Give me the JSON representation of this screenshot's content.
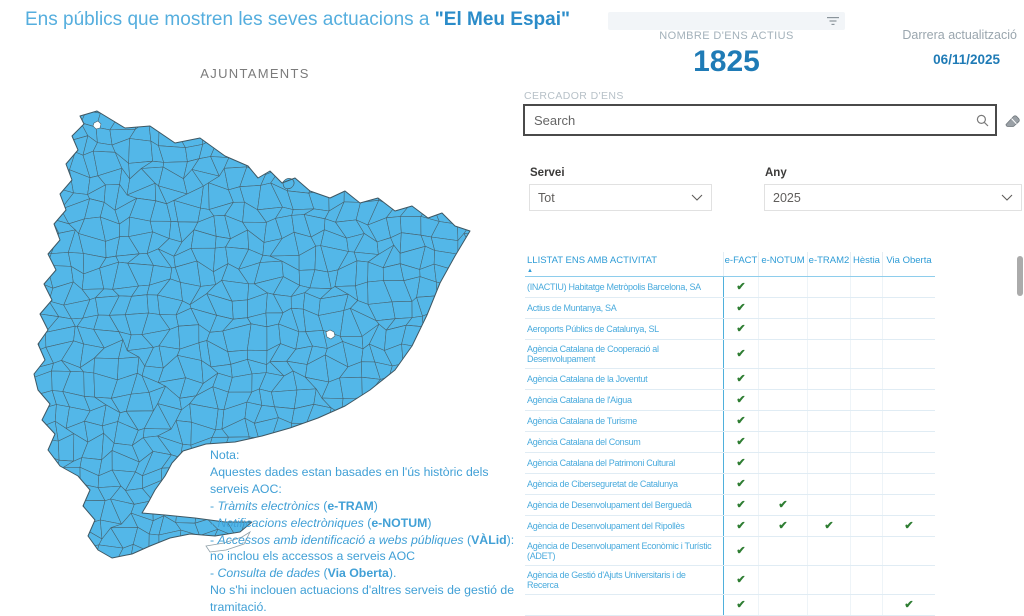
{
  "title": {
    "prefix": "Ens públics que mostren les seves actuacions a ",
    "highlight": "\"El Meu Espai\""
  },
  "map": {
    "title": "AJUNTAMENTS",
    "fill_color": "#53b7e8",
    "border_color": "#47626e"
  },
  "kpi": {
    "label": "NOMBRE D'ENS ACTIUS",
    "value": "1825"
  },
  "updated": {
    "label": "Darrera actualització",
    "value": "06/11/2025"
  },
  "search": {
    "section_label": "CERCADOR D'ENS",
    "placeholder": "Search"
  },
  "filters": {
    "servei_label": "Servei",
    "servei_value": "Tot",
    "any_label": "Any",
    "any_value": "2025"
  },
  "table": {
    "name_header": "LLISTAT ENS AMB ACTIVITAT",
    "sort_glyph": "▲",
    "check_glyph": "✔",
    "check_color": "#2e7d32",
    "service_headers": [
      "e-FACT",
      "e-NOTUM",
      "e-TRAM2",
      "Hèstia",
      "Via Oberta"
    ],
    "rows": [
      {
        "name": "(INACTIU) Habitatge Metròpolis Barcelona, SA",
        "checks": [
          1,
          0,
          0,
          0,
          0
        ]
      },
      {
        "name": "Actius de Muntanya, SA",
        "checks": [
          1,
          0,
          0,
          0,
          0
        ]
      },
      {
        "name": "Aeroports Públics de Catalunya, SL",
        "checks": [
          1,
          0,
          0,
          0,
          0
        ]
      },
      {
        "name": "Agència Catalana de Cooperació al\nDesenvolupament",
        "checks": [
          1,
          0,
          0,
          0,
          0
        ]
      },
      {
        "name": "Agència Catalana de la Joventut",
        "checks": [
          1,
          0,
          0,
          0,
          0
        ]
      },
      {
        "name": "Agència Catalana de l'Aigua",
        "checks": [
          1,
          0,
          0,
          0,
          0
        ]
      },
      {
        "name": "Agència Catalana de Turisme",
        "checks": [
          1,
          0,
          0,
          0,
          0
        ]
      },
      {
        "name": "Agència Catalana del Consum",
        "checks": [
          1,
          0,
          0,
          0,
          0
        ]
      },
      {
        "name": "Agència Catalana del Patrimoni Cultural",
        "checks": [
          1,
          0,
          0,
          0,
          0
        ]
      },
      {
        "name": "Agència de Ciberseguretat de Catalunya",
        "checks": [
          1,
          0,
          0,
          0,
          0
        ]
      },
      {
        "name": "Agència de Desenvolupament del Berguedà",
        "checks": [
          1,
          1,
          0,
          0,
          0
        ]
      },
      {
        "name": "Agència de Desenvolupament del Ripollès",
        "checks": [
          1,
          1,
          1,
          0,
          1
        ]
      },
      {
        "name": "Agència de Desenvolupament Econòmic i Turístic\n(ADET)",
        "checks": [
          1,
          0,
          0,
          0,
          0
        ]
      },
      {
        "name": "Agència de Gestió d'Ajuts Universitaris i de Recerca",
        "checks": [
          1,
          0,
          0,
          0,
          0
        ]
      },
      {
        "name": "",
        "checks": [
          1,
          0,
          0,
          0,
          1
        ]
      }
    ]
  },
  "note": {
    "lines": [
      [
        {
          "t": "Nota:"
        }
      ],
      [
        {
          "t": "Aquestes dades estan basades en l'ús  històric dels serveis AOC:"
        }
      ],
      [
        {
          "t": "- "
        },
        {
          "t": "Tràmits electrònics",
          "em": true
        },
        {
          "t": " ("
        },
        {
          "t": "e-TRAM",
          "b": true
        },
        {
          "t": ")"
        }
      ],
      [
        {
          "t": "- "
        },
        {
          "t": "Notificacions electròniques",
          "em": true
        },
        {
          "t": " ("
        },
        {
          "t": "e-NOTUM",
          "b": true
        },
        {
          "t": ")"
        }
      ],
      [
        {
          "t": "- "
        },
        {
          "t": "Accessos amb identificació a webs públiques",
          "em": true
        },
        {
          "t": " ("
        },
        {
          "t": "VÀLid",
          "b": true
        },
        {
          "t": "): no inclou els accessos a serveis AOC"
        }
      ],
      [
        {
          "t": "- "
        },
        {
          "t": "Consulta de dades",
          "em": true
        },
        {
          "t": " ("
        },
        {
          "t": "Via Oberta",
          "b": true
        },
        {
          "t": ")."
        }
      ],
      [
        {
          "t": "No s'hi inclouen actuacions d'altres serveis de gestió de tramitació."
        }
      ]
    ]
  },
  "icons": {
    "filter": "filter-icon",
    "search": "search-icon",
    "eraser": "eraser-icon",
    "chevron": "chevron-down-icon"
  },
  "colors": {
    "title_light_blue": "#55aede",
    "title_dark_blue": "#2b8cc9",
    "kpi_blue": "#1f7bb6",
    "table_text_blue": "#4aabdd",
    "header_blue": "#2f9cd6",
    "map_blue": "#53b7e8",
    "check_green": "#2e7d32"
  }
}
